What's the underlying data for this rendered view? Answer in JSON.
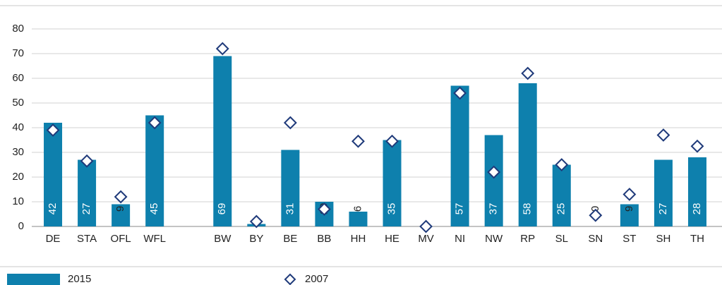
{
  "chart_data": {
    "type": "bar",
    "categories": [
      "DE",
      "STA",
      "OFL",
      "WFL",
      null,
      "BW",
      "BY",
      "BE",
      "BB",
      "HH",
      "HE",
      "MV",
      "NI",
      "NW",
      "RP",
      "SL",
      "SN",
      "ST",
      "SH",
      "TH"
    ],
    "series": [
      {
        "name": "2015",
        "color": "#0e80ad",
        "marker": "bar",
        "values": [
          42,
          27,
          9,
          45,
          null,
          69,
          1,
          31,
          10,
          6,
          35,
          null,
          57,
          37,
          58,
          25,
          0,
          9,
          27,
          28
        ],
        "value_labels": [
          "42",
          "27",
          "9",
          "45",
          null,
          "69",
          null,
          "31",
          "10",
          "6",
          "35",
          null,
          "57",
          "37",
          "58",
          "25",
          "0",
          "9",
          "27",
          "28"
        ]
      },
      {
        "name": "2007",
        "color": "#1f3a7a",
        "marker": "diamond",
        "values": [
          39,
          26.5,
          12,
          42,
          null,
          72,
          2,
          42,
          7,
          34.5,
          34.5,
          0,
          54,
          22,
          62,
          25,
          4.5,
          13,
          37,
          32.5
        ]
      }
    ],
    "ylim": [
      0,
      80
    ],
    "yticks": [
      0,
      10,
      20,
      30,
      40,
      50,
      60,
      70,
      80
    ],
    "grid": true,
    "legend": "bottom-left"
  }
}
